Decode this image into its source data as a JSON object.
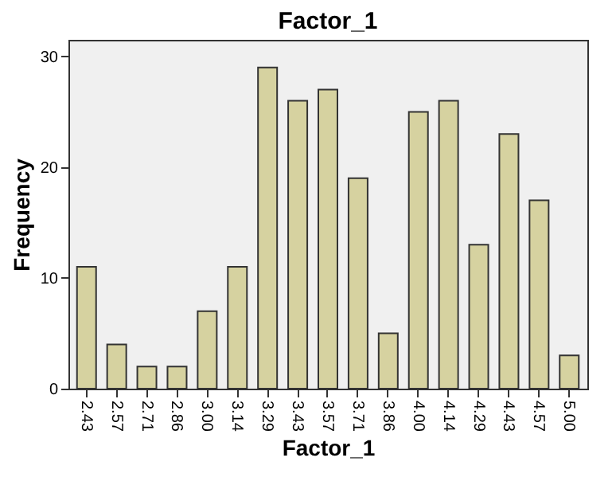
{
  "chart_data": {
    "type": "bar",
    "title": "Factor_1",
    "xlabel": "Factor_1",
    "ylabel": "Frequency",
    "categories": [
      "2.43",
      "2.57",
      "2.71",
      "2.86",
      "3.00",
      "3.14",
      "3.29",
      "3.43",
      "3.57",
      "3.71",
      "3.86",
      "4.00",
      "4.14",
      "4.29",
      "4.43",
      "4.57",
      "5.00"
    ],
    "values": [
      11,
      4,
      2,
      2,
      7,
      11,
      29,
      26,
      27,
      19,
      5,
      25,
      26,
      13,
      23,
      17,
      3
    ],
    "color": "#d6d2a0",
    "ylim": [
      0,
      31.5
    ],
    "yticks": [
      0,
      10,
      20,
      30
    ],
    "grid": false
  }
}
